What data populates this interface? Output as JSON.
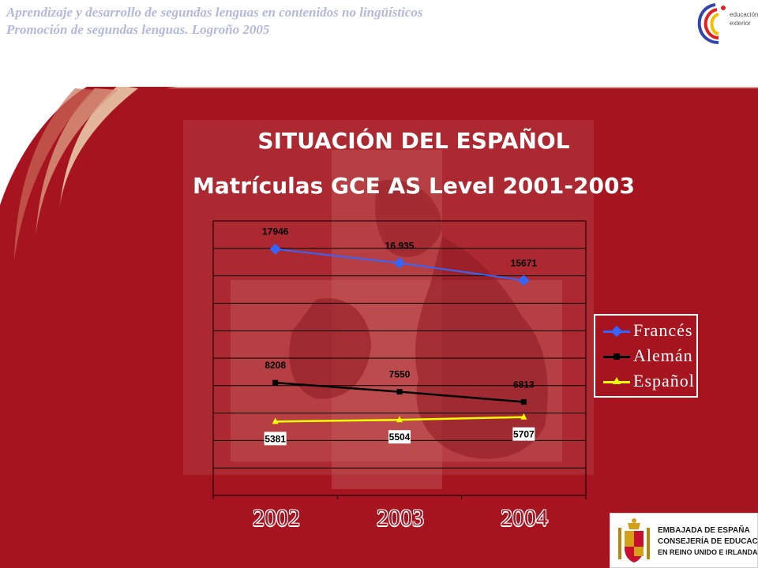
{
  "header": {
    "line1": "Aprendizaje y desarrollo de segundas lenguas en contenidos no lingüísticos",
    "line2": "Promoción de segundas lenguas. Logroño 2005"
  },
  "logo_top": {
    "text1": "educación",
    "text2": "exterior",
    "icon": "educacion-exterior-logo"
  },
  "title": {
    "line1": "SITUACIÓN DEL ESPAÑOL",
    "line2": "Matrículas GCE AS Level 2001-2003"
  },
  "chart_data": {
    "type": "line",
    "title": "Matrículas GCE AS Level 2001-2003",
    "categories": [
      "2002",
      "2003",
      "2004"
    ],
    "series": [
      {
        "name": "Francés",
        "values": [
          17946,
          16935,
          15671
        ],
        "labels": [
          "17946",
          "16.935",
          "15671"
        ],
        "color": "#3366ff",
        "marker": "diamond"
      },
      {
        "name": "Alemán",
        "values": [
          8208,
          7550,
          6813
        ],
        "labels": [
          "8208",
          "7550",
          "6813"
        ],
        "color": "#000000",
        "marker": "square"
      },
      {
        "name": "Español",
        "values": [
          5381,
          5504,
          5707
        ],
        "labels": [
          "5381",
          "5504",
          "5707"
        ],
        "color": "#ffff00",
        "marker": "triangle"
      }
    ],
    "ylim": [
      0,
      20000
    ],
    "grid": true,
    "legend": "right"
  },
  "bottom_logo": {
    "line1": "EMBAJADA DE ESPAÑA",
    "line2": "CONSEJERÍA DE EDUCACIÓN",
    "line3": "EN REINO UNIDO E IRLANDA",
    "icon": "spain-coat-of-arms"
  }
}
